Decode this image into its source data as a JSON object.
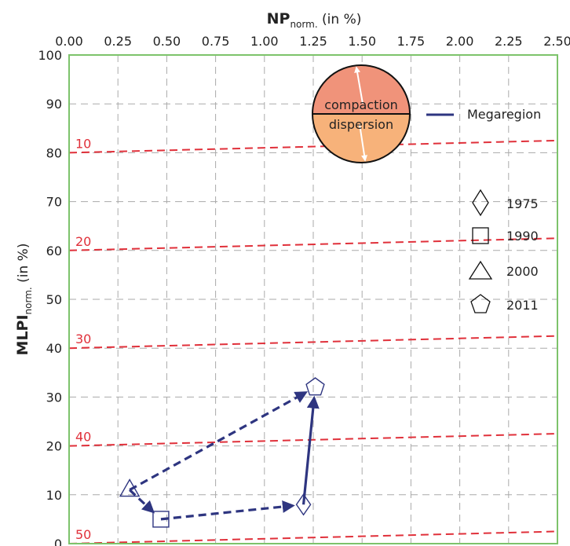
{
  "colors": {
    "frame": "#7dc36b",
    "grid": "#aaaaaa",
    "iso": "#e0303a",
    "series": "#2e3580",
    "badge_top": "#f0937a",
    "badge_bottom": "#f7b27a"
  },
  "chart_data": {
    "type": "scatter",
    "x_title_main": "NP",
    "x_title_sub": "norm.",
    "x_title_unit": "(in %)",
    "y_title_main": "MLPI",
    "y_title_sub": "norm.",
    "y_title_unit": "(in %)",
    "xlim": [
      0,
      2.5
    ],
    "ylim": [
      0,
      100
    ],
    "x_ticks": [
      "0.00",
      "0.25",
      "0.50",
      "0.75",
      "1.00",
      "1.25",
      "1.50",
      "1.75",
      "2.00",
      "2.25",
      "2.50"
    ],
    "y_ticks": [
      "0",
      "10",
      "20",
      "30",
      "40",
      "50",
      "60",
      "70",
      "80",
      "90",
      "100"
    ],
    "x_axis_position": "top",
    "grid": true,
    "iso_lines": [
      {
        "label": "10",
        "y0": 80,
        "y1": 82.5
      },
      {
        "label": "20",
        "y0": 60,
        "y1": 62.5
      },
      {
        "label": "30",
        "y0": 40,
        "y1": 42.5
      },
      {
        "label": "40",
        "y0": 20,
        "y1": 22.5
      },
      {
        "label": "50",
        "y0": 0,
        "y1": 2.5
      }
    ],
    "series": [
      {
        "name": "Megaregion",
        "points": [
          {
            "year": "1975",
            "marker": "diamond",
            "x": 1.2,
            "y": 8
          },
          {
            "year": "1990",
            "marker": "square",
            "x": 0.47,
            "y": 5
          },
          {
            "year": "2000",
            "marker": "triangle",
            "x": 0.31,
            "y": 11
          },
          {
            "year": "2011",
            "marker": "pentagon",
            "x": 1.26,
            "y": 32
          }
        ],
        "arrows": [
          {
            "from": "1975",
            "to": "2011",
            "style": "solid"
          },
          {
            "from": "1990",
            "to": "1975",
            "style": "dashed"
          },
          {
            "from": "2000",
            "to": "1990",
            "style": "dashed"
          },
          {
            "from": "2000",
            "to": "2011",
            "style": "dashed"
          }
        ]
      }
    ],
    "legend": {
      "placement": "top-right",
      "line_entry": "Megaregion",
      "marker_entries": [
        {
          "label": "1975",
          "marker": "diamond"
        },
        {
          "label": "1990",
          "marker": "square"
        },
        {
          "label": "2000",
          "marker": "triangle"
        },
        {
          "label": "2011",
          "marker": "pentagon"
        }
      ]
    },
    "annotation": {
      "top_text": "compaction",
      "bottom_text": "dispersion"
    }
  }
}
